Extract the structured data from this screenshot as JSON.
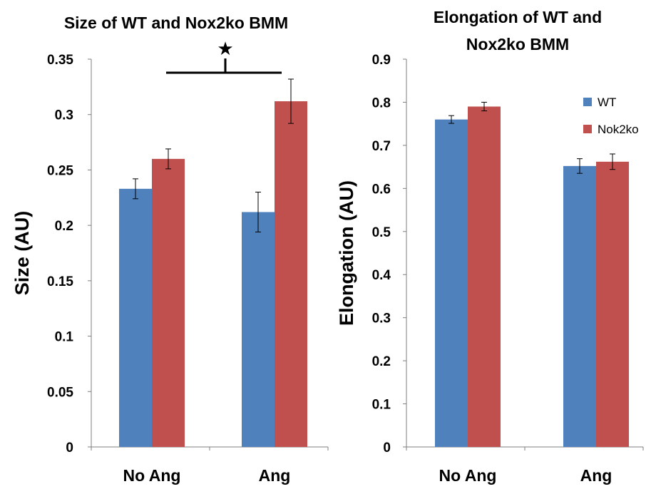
{
  "chart_data": [
    {
      "type": "bar",
      "title": "Size of WT and Nox2ko BMM",
      "ylabel": "Size (AU)",
      "xlabel": "",
      "categories": [
        "No Ang",
        "Ang"
      ],
      "ylim": [
        0,
        0.35
      ],
      "yticks": [
        "0",
        "0.05",
        "0.1",
        "0.15",
        "0.2",
        "0.25",
        "0.3",
        "0.35"
      ],
      "series": [
        {
          "values": [
            0.233,
            0.212
          ],
          "errors": [
            0.009,
            0.018
          ],
          "color": "#4f81bd"
        },
        {
          "values": [
            0.26,
            0.312
          ],
          "errors": [
            0.009,
            0.02
          ],
          "color": "#c0504d"
        }
      ],
      "annotation": {
        "symbol": "★",
        "meaning": "significance bracket over Ang group"
      }
    },
    {
      "type": "bar",
      "title": "Elongation of WT and Nox2ko BMM",
      "title_lines": [
        "Elongation of WT and",
        "Nox2ko BMM"
      ],
      "ylabel": "Elongation (AU)",
      "xlabel": "",
      "categories": [
        "No Ang",
        "Ang"
      ],
      "ylim": [
        0,
        0.9
      ],
      "yticks": [
        "0",
        "0.1",
        "0.2",
        "0.3",
        "0.4",
        "0.5",
        "0.6",
        "0.7",
        "0.8",
        "0.9"
      ],
      "legend_position": "top-right",
      "series": [
        {
          "name": "WT",
          "values": [
            0.76,
            0.652
          ],
          "errors": [
            0.009,
            0.017
          ],
          "color": "#4f81bd"
        },
        {
          "name": "Nok2ko",
          "values": [
            0.79,
            0.662
          ],
          "errors": [
            0.01,
            0.018
          ],
          "color": "#c0504d"
        }
      ]
    }
  ]
}
